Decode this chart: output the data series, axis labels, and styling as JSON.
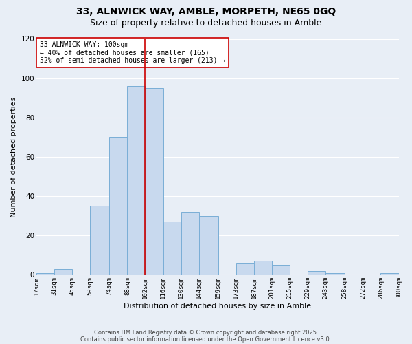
{
  "title": "33, ALNWICK WAY, AMBLE, MORPETH, NE65 0GQ",
  "subtitle": "Size of property relative to detached houses in Amble",
  "xlabel": "Distribution of detached houses by size in Amble",
  "ylabel": "Number of detached properties",
  "bin_edges": [
    17,
    31,
    45,
    59,
    74,
    88,
    102,
    116,
    130,
    144,
    159,
    173,
    187,
    201,
    215,
    229,
    243,
    258,
    272,
    286,
    300
  ],
  "bar_heights": [
    1,
    3,
    0,
    35,
    70,
    96,
    95,
    27,
    32,
    30,
    0,
    6,
    7,
    5,
    0,
    2,
    1,
    0,
    0,
    1
  ],
  "bar_color": "#c8d9ee",
  "bar_edge_color": "#7aaed6",
  "reference_line_x": 102,
  "reference_line_color": "#cc0000",
  "ylim": [
    0,
    120
  ],
  "annotation_text": "33 ALNWICK WAY: 100sqm\n← 40% of detached houses are smaller (165)\n52% of semi-detached houses are larger (213) →",
  "annotation_box_color": "#ffffff",
  "annotation_box_edge_color": "#cc0000",
  "bg_color": "#e8eef6",
  "grid_color": "#ffffff",
  "footer_line1": "Contains HM Land Registry data © Crown copyright and database right 2025.",
  "footer_line2": "Contains public sector information licensed under the Open Government Licence v3.0.",
  "title_fontsize": 10,
  "subtitle_fontsize": 9,
  "tick_labels": [
    "17sqm",
    "31sqm",
    "45sqm",
    "59sqm",
    "74sqm",
    "88sqm",
    "102sqm",
    "116sqm",
    "130sqm",
    "144sqm",
    "159sqm",
    "173sqm",
    "187sqm",
    "201sqm",
    "215sqm",
    "229sqm",
    "243sqm",
    "258sqm",
    "272sqm",
    "286sqm",
    "300sqm"
  ],
  "yticks": [
    0,
    20,
    40,
    60,
    80,
    100,
    120
  ]
}
